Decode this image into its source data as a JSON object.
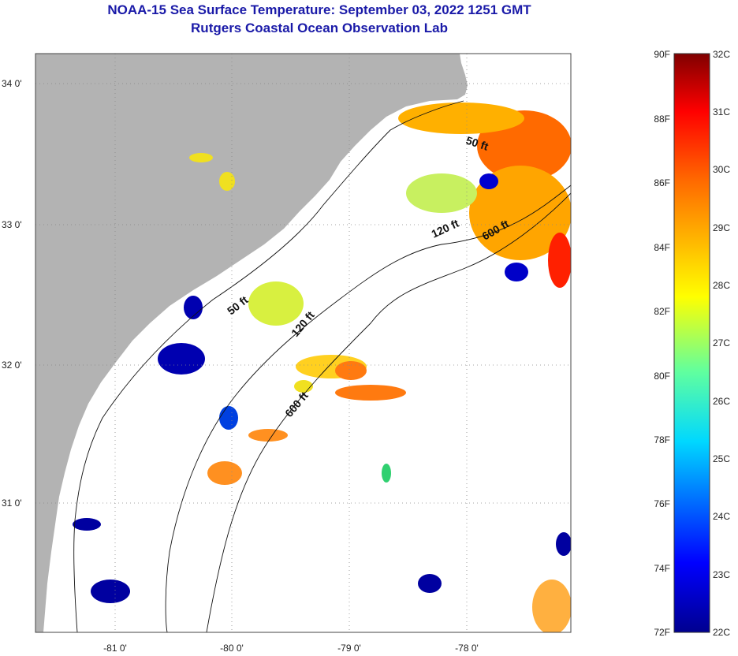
{
  "title": "NOAA-15 Sea Surface Temperature:  September 03, 2022 1251 GMT",
  "subtitle": "Rutgers Coastal Ocean Observation Lab",
  "map": {
    "lat_labels": [
      "34 0'",
      "33 0'",
      "32 0'",
      "31 0'"
    ],
    "lon_labels": [
      "-81 0'",
      "-80 0'",
      "-79 0'",
      "-78 0'"
    ],
    "depth_labels": [
      "50 ft",
      "50 ft",
      "120 ft",
      "120 ft",
      "600 ft",
      "600 ft"
    ]
  },
  "colorbar": {
    "fahrenheit": [
      "90F",
      "88F",
      "86F",
      "84F",
      "82F",
      "80F",
      "78F",
      "76F",
      "74F",
      "72F"
    ],
    "celsius": [
      "32C",
      "31C",
      "30C",
      "29C",
      "28C",
      "27C",
      "26C",
      "25C",
      "24C",
      "23C",
      "22C"
    ]
  },
  "colors": {
    "land": "#b3b3b3",
    "title": "#1a1aa8",
    "cold": "#000080",
    "warm": "#ff6a00",
    "hot": "#7f0000"
  }
}
